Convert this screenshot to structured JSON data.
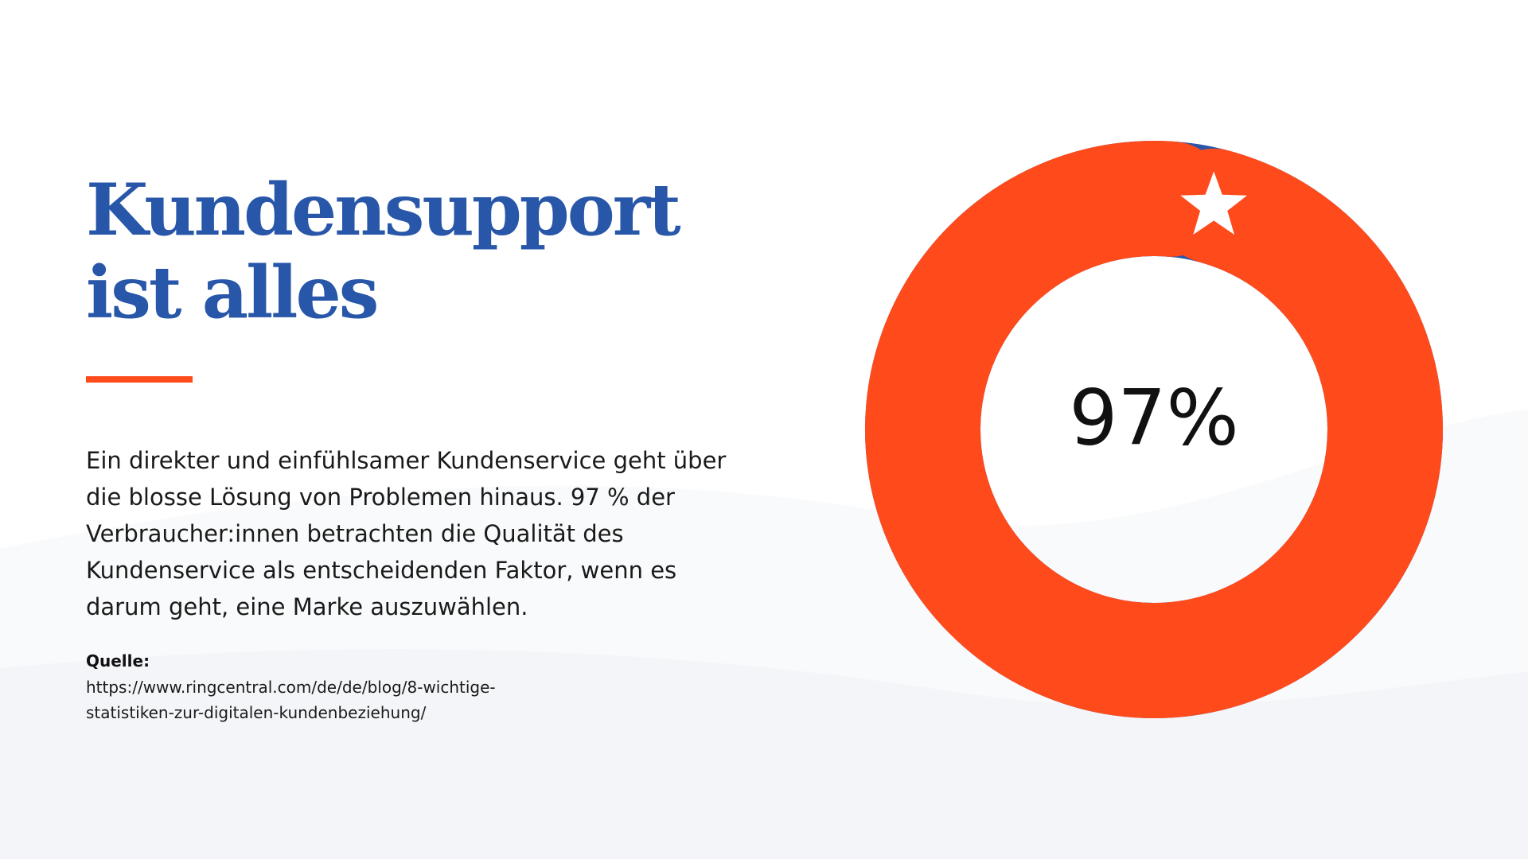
{
  "slide": {
    "title_lines": [
      "Kundensupport",
      "ist alles"
    ],
    "body_lines": [
      "Ein direkter und einfühlsamer Kundenservice geht über",
      "die blosse Lösung von Problemen hinaus. 97 % der",
      "Verbraucher:innen betrachten die Qualität des",
      "Kundenservice als entscheidenden Faktor, wenn es",
      "darum geht, eine Marke auszuwählen."
    ],
    "source_label": "Quelle:",
    "source_url_lines": [
      "https://www.ringcentral.com/de/de/blog/8-wichtige-",
      "statistiken-zur-digitalen-kundenbeziehung/"
    ]
  },
  "icons": {
    "highlight": "star-icon"
  },
  "colors": {
    "title": "#2856A8",
    "accent": "#FF4A1C",
    "secondary": "#2A56A6",
    "text": "#1a1a1a",
    "background_wave": "#F4F5F8"
  },
  "chart_data": {
    "type": "pie",
    "donut": true,
    "center_label": "97%",
    "values": [
      97,
      3
    ],
    "slice_colors": [
      "#FF4A1C",
      "#2A56A6"
    ],
    "title": "",
    "legend": "none"
  }
}
